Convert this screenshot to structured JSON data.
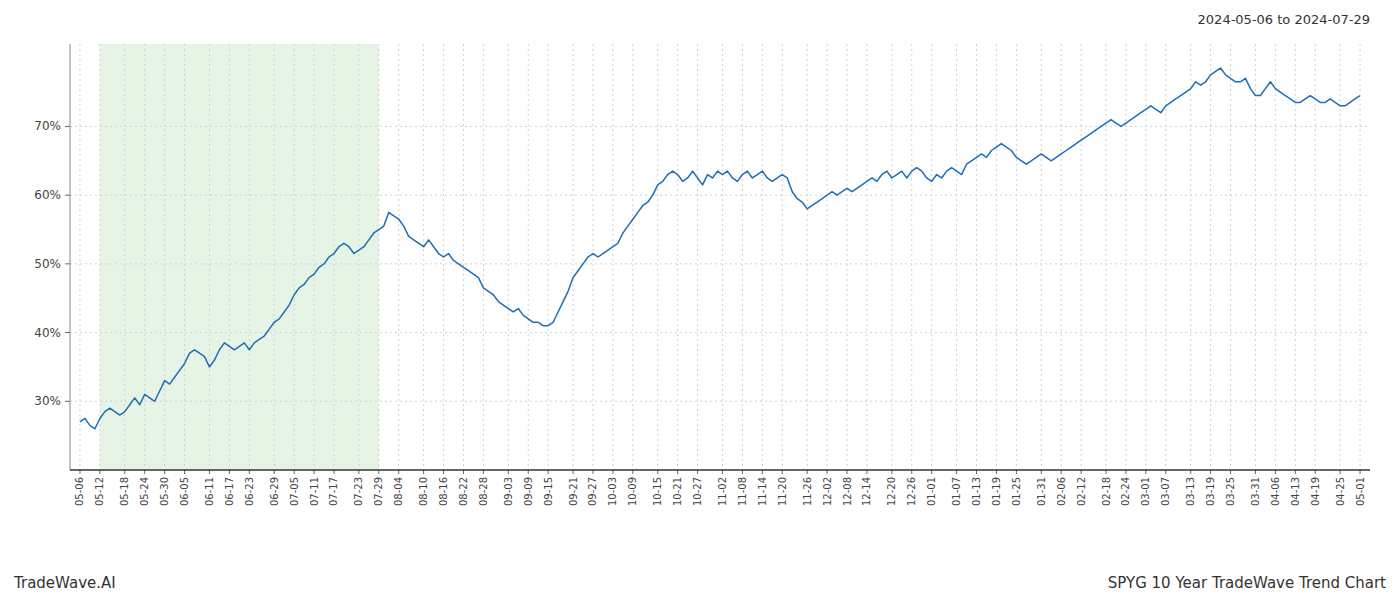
{
  "chart_data": {
    "type": "line",
    "title": "SPYG 10 Year TradeWave Trend Chart",
    "subtitle": "2024-05-06 to 2024-07-29",
    "annotations": [
      "TradeWave.AI"
    ],
    "color": "#1f6eb5",
    "grid": true,
    "ylim": [
      20,
      82
    ],
    "yticks": [
      {
        "value": 30,
        "label": "30%"
      },
      {
        "value": 40,
        "label": "40%"
      },
      {
        "value": 50,
        "label": "50%"
      },
      {
        "value": 60,
        "label": "60%"
      },
      {
        "value": 70,
        "label": "70%"
      }
    ],
    "shaded": {
      "from": "05-12",
      "to": "07-29",
      "color": "#c8e6c8"
    },
    "categories": [
      "05-06",
      null,
      null,
      null,
      "05-12",
      null,
      null,
      null,
      null,
      "05-18",
      null,
      null,
      null,
      "05-24",
      null,
      null,
      null,
      "05-30",
      null,
      null,
      null,
      "06-05",
      null,
      null,
      null,
      null,
      "06-11",
      null,
      null,
      null,
      "06-17",
      null,
      null,
      null,
      "06-23",
      null,
      null,
      null,
      null,
      "06-29",
      null,
      null,
      null,
      "07-05",
      null,
      null,
      null,
      "07-11",
      null,
      null,
      null,
      "07-17",
      null,
      null,
      null,
      null,
      "07-23",
      null,
      null,
      null,
      "07-29",
      null,
      null,
      null,
      "08-04",
      null,
      null,
      null,
      null,
      "08-10",
      null,
      null,
      null,
      "08-16",
      null,
      null,
      null,
      "08-22",
      null,
      null,
      null,
      "08-28",
      null,
      null,
      null,
      null,
      "09-03",
      null,
      null,
      null,
      "09-09",
      null,
      null,
      null,
      "09-15",
      null,
      null,
      null,
      null,
      "09-21",
      null,
      null,
      null,
      "09-27",
      null,
      null,
      null,
      "10-03",
      null,
      null,
      null,
      "10-09",
      null,
      null,
      null,
      null,
      "10-15",
      null,
      null,
      null,
      "10-21",
      null,
      null,
      null,
      "10-27",
      null,
      null,
      null,
      null,
      "11-02",
      null,
      null,
      null,
      "11-08",
      null,
      null,
      null,
      "11-14",
      null,
      null,
      null,
      "11-20",
      null,
      null,
      null,
      null,
      "11-26",
      null,
      null,
      null,
      "12-02",
      null,
      null,
      null,
      "12-08",
      null,
      null,
      null,
      "12-14",
      null,
      null,
      null,
      null,
      "12-20",
      null,
      null,
      null,
      "12-26",
      null,
      null,
      null,
      "01-01",
      null,
      null,
      null,
      null,
      "01-07",
      null,
      null,
      null,
      "01-13",
      null,
      null,
      null,
      "01-19",
      null,
      null,
      null,
      "01-25",
      null,
      null,
      null,
      null,
      "01-31",
      null,
      null,
      null,
      "02-06",
      null,
      null,
      null,
      "02-12",
      null,
      null,
      null,
      null,
      "02-18",
      null,
      null,
      null,
      "02-24",
      null,
      null,
      null,
      "03-01",
      null,
      null,
      null,
      "03-07",
      null,
      null,
      null,
      null,
      "03-13",
      null,
      null,
      null,
      "03-19",
      null,
      null,
      null,
      "03-25",
      null,
      null,
      null,
      null,
      "03-31",
      null,
      null,
      null,
      "04-06",
      null,
      null,
      null,
      "04-13",
      null,
      null,
      null,
      "04-19",
      null,
      null,
      null,
      null,
      "04-25",
      null,
      null,
      null,
      "05-01"
    ],
    "values": [
      27.0,
      27.5,
      26.5,
      26.0,
      27.5,
      28.5,
      29.0,
      28.5,
      28.0,
      28.5,
      29.5,
      30.5,
      29.5,
      31.0,
      30.5,
      30.0,
      31.5,
      33.0,
      32.5,
      33.5,
      34.5,
      35.5,
      37.0,
      37.5,
      37.0,
      36.5,
      35.0,
      36.0,
      37.5,
      38.5,
      38.0,
      37.5,
      38.0,
      38.5,
      37.5,
      38.5,
      39.0,
      39.5,
      40.5,
      41.5,
      42.0,
      43.0,
      44.0,
      45.5,
      46.5,
      47.0,
      48.0,
      48.5,
      49.5,
      50.0,
      51.0,
      51.5,
      52.5,
      53.0,
      52.5,
      51.5,
      52.0,
      52.5,
      53.5,
      54.5,
      55.0,
      55.5,
      57.5,
      57.0,
      56.5,
      55.5,
      54.0,
      53.5,
      53.0,
      52.5,
      53.5,
      52.5,
      51.5,
      51.0,
      51.5,
      50.5,
      50.0,
      49.5,
      49.0,
      48.5,
      48.0,
      46.5,
      46.0,
      45.5,
      44.5,
      44.0,
      43.5,
      43.0,
      43.5,
      42.5,
      42.0,
      41.5,
      41.5,
      41.0,
      41.0,
      41.5,
      43.0,
      44.5,
      46.0,
      48.0,
      49.0,
      50.0,
      51.0,
      51.5,
      51.0,
      51.5,
      52.0,
      52.5,
      53.0,
      54.5,
      55.5,
      56.5,
      57.5,
      58.5,
      59.0,
      60.0,
      61.5,
      62.0,
      63.0,
      63.5,
      63.0,
      62.0,
      62.5,
      63.5,
      62.5,
      61.5,
      63.0,
      62.5,
      63.5,
      63.0,
      63.5,
      62.5,
      62.0,
      63.0,
      63.5,
      62.5,
      63.0,
      63.5,
      62.5,
      62.0,
      62.5,
      63.0,
      62.5,
      60.5,
      59.5,
      59.0,
      58.0,
      58.5,
      59.0,
      59.5,
      60.0,
      60.5,
      60.0,
      60.5,
      61.0,
      60.5,
      61.0,
      61.5,
      62.0,
      62.5,
      62.0,
      63.0,
      63.5,
      62.5,
      63.0,
      63.5,
      62.5,
      63.5,
      64.0,
      63.5,
      62.5,
      62.0,
      63.0,
      62.5,
      63.5,
      64.0,
      63.5,
      63.0,
      64.5,
      65.0,
      65.5,
      66.0,
      65.5,
      66.5,
      67.0,
      67.5,
      67.0,
      66.5,
      65.5,
      65.0,
      64.5,
      65.0,
      65.5,
      66.0,
      65.5,
      65.0,
      65.5,
      66.0,
      66.5,
      67.0,
      67.5,
      68.0,
      68.5,
      69.0,
      69.5,
      70.0,
      70.5,
      71.0,
      70.5,
      70.0,
      70.5,
      71.0,
      71.5,
      72.0,
      72.5,
      73.0,
      72.5,
      72.0,
      73.0,
      73.5,
      74.0,
      74.5,
      75.0,
      75.5,
      76.5,
      76.0,
      76.5,
      77.5,
      78.0,
      78.5,
      77.5,
      77.0,
      76.5,
      76.5,
      77.0,
      75.5,
      74.5,
      74.5,
      75.5,
      76.5,
      75.5,
      75.0,
      74.5,
      74.0,
      73.5,
      73.5,
      74.0,
      74.5,
      74.0,
      73.5,
      73.5,
      74.0,
      73.5,
      73.0,
      73.0,
      73.5,
      74.0,
      74.5
    ]
  }
}
